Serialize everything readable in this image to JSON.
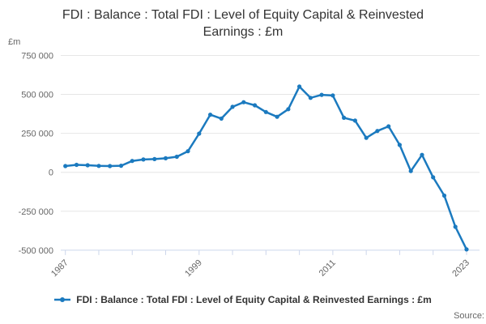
{
  "title": {
    "text": "FDI : Balance : Total FDI : Level of Equity Capital & Reinvested Earnings : £m"
  },
  "y_axis_unit_label": "£m",
  "legend": {
    "label": "FDI : Balance : Total FDI : Level of Equity Capital & Reinvested Earnings : £m",
    "marker_color": "#1b7abf"
  },
  "footer": {
    "source_label": "Source:"
  },
  "chart_data": {
    "type": "line",
    "title": "FDI : Balance : Total FDI : Level of Equity Capital & Reinvested Earnings : £m",
    "ylabel": "£m",
    "xlabel": "",
    "grid": true,
    "legend_position": "bottom",
    "ylim": [
      -500000,
      750000
    ],
    "y_ticks": [
      750000,
      500000,
      250000,
      0,
      -250000,
      -500000
    ],
    "y_tick_labels": [
      "750 000",
      "500 000",
      "250 000",
      "0",
      "-250 000",
      "-500 000"
    ],
    "x_ticks": [
      1987,
      1990,
      1993,
      1996,
      1999,
      2002,
      2005,
      2008,
      2011,
      2014,
      2017,
      2020,
      2023
    ],
    "x_label_years": [
      1987,
      1999,
      2011,
      2023
    ],
    "x_tick_labels": [
      "1987",
      "1999",
      "2011",
      "2023"
    ],
    "x": [
      1987,
      1988,
      1989,
      1990,
      1991,
      1992,
      1993,
      1994,
      1995,
      1996,
      1997,
      1998,
      1999,
      2000,
      2001,
      2002,
      2003,
      2004,
      2005,
      2006,
      2007,
      2008,
      2009,
      2010,
      2011,
      2012,
      2013,
      2014,
      2015,
      2016,
      2017,
      2018,
      2019,
      2020,
      2021,
      2022,
      2023
    ],
    "series": [
      {
        "name": "FDI : Balance : Total FDI : Level of Equity Capital & Reinvested Earnings : £m",
        "values": [
          40000,
          48000,
          45000,
          41000,
          40000,
          42000,
          73000,
          82000,
          85000,
          90000,
          100000,
          135000,
          248000,
          370000,
          345000,
          420000,
          450000,
          430000,
          387000,
          356000,
          405000,
          550000,
          478000,
          497000,
          493000,
          350000,
          332000,
          221000,
          265000,
          295000,
          176000,
          8000,
          112000,
          -32000,
          -150000,
          -350000,
          -495000
        ]
      }
    ],
    "colors": {
      "line": "#1b7abf",
      "grid": "#e6e6e6",
      "axis": "#ccd6eb",
      "tick_label": "#666666",
      "title": "#333333"
    }
  }
}
